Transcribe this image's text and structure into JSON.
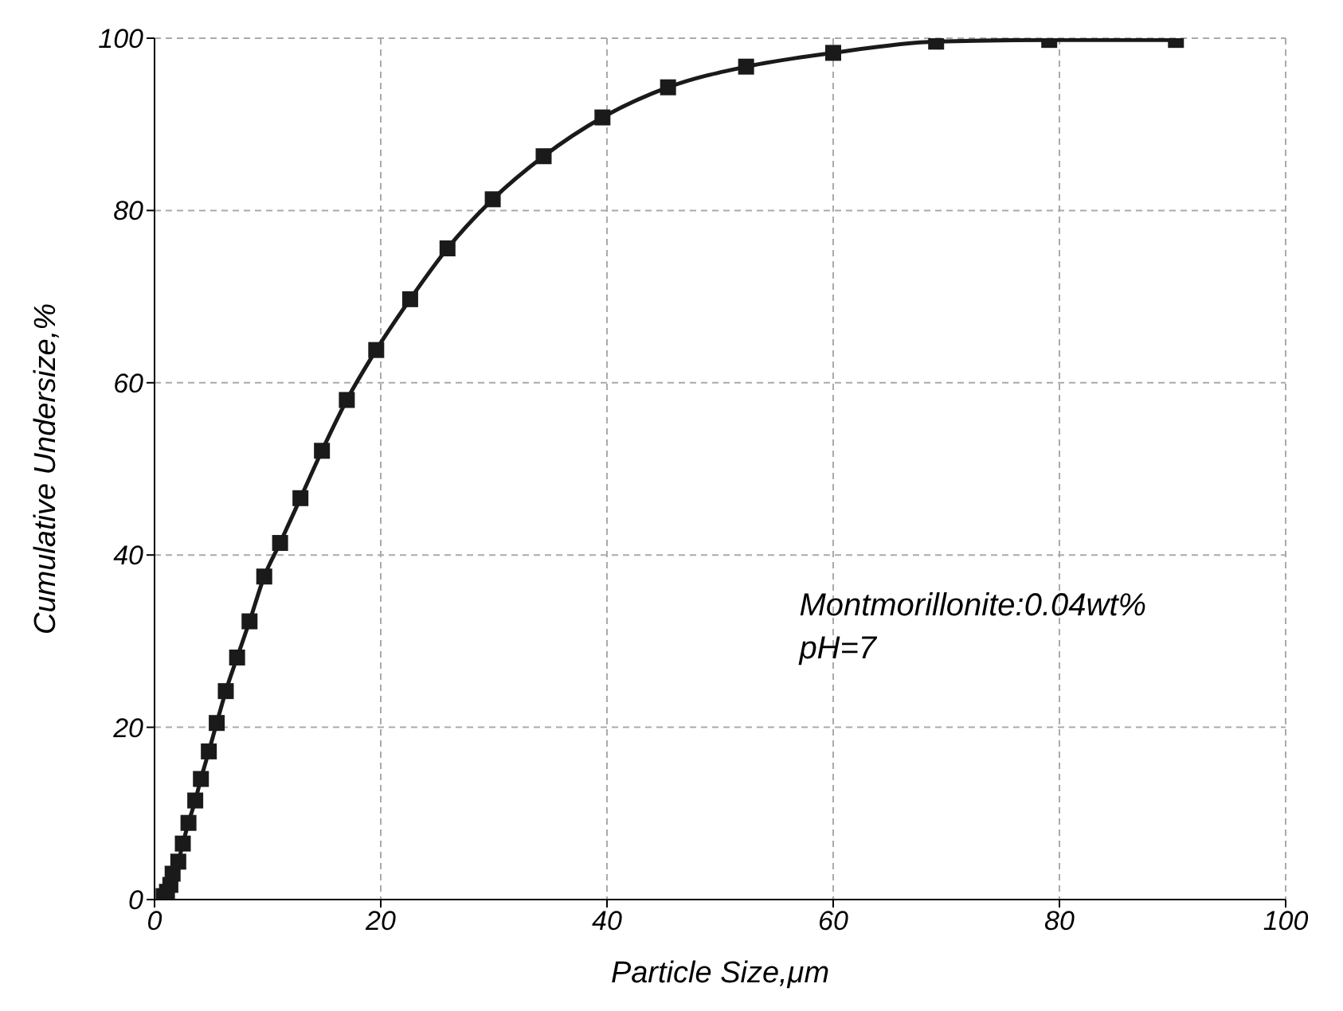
{
  "chart_data": {
    "type": "line",
    "xlabel": "Particle Size,μm",
    "ylabel": "Cumulative Undersize,%",
    "x": [
      0.8,
      1.1,
      1.4,
      1.6,
      2.1,
      2.5,
      3.0,
      3.6,
      4.1,
      4.8,
      5.5,
      6.3,
      7.3,
      8.4,
      9.7,
      11.1,
      12.9,
      14.8,
      17.0,
      19.6,
      22.6,
      25.9,
      29.9,
      34.4,
      39.6,
      45.4,
      52.3,
      60.0,
      69.1,
      79.1,
      90.3
    ],
    "series": [
      {
        "color": "#1a1a1a",
        "values": [
          0.4,
          0.9,
          1.7,
          3.0,
          4.4,
          6.5,
          8.9,
          11.5,
          14.0,
          17.2,
          20.5,
          24.2,
          28.1,
          32.3,
          37.5,
          41.4,
          46.6,
          52.1,
          58.0,
          63.8,
          69.7,
          75.6,
          81.3,
          86.3,
          90.8,
          94.3,
          96.7,
          98.3,
          99.6,
          99.8,
          99.8
        ]
      }
    ],
    "xlim": [
      0,
      100
    ],
    "xticks": [
      0,
      20,
      40,
      60,
      80,
      100
    ],
    "ylim": [
      0,
      100
    ],
    "yticks": [
      0,
      20,
      40,
      60,
      80,
      100
    ],
    "grid": true,
    "marker": "square",
    "line_style": "solid",
    "annotations": [
      "Montmorillonite:0.04wt%",
      "pH=7"
    ]
  }
}
